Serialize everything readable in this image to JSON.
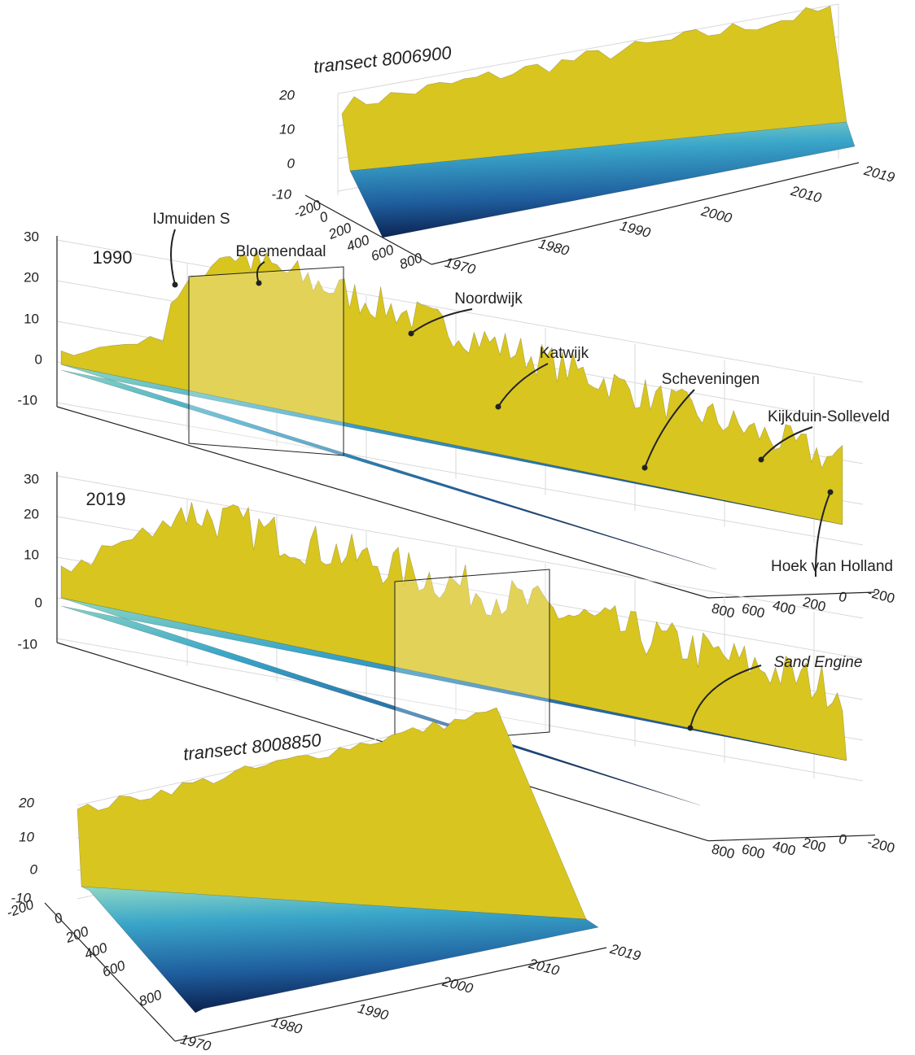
{
  "panels": [
    {
      "title": "transect 8006900",
      "z_ticks": [
        "20",
        "10",
        "0",
        "-10"
      ],
      "cross_shore_ticks": [
        "-200",
        "0",
        "200",
        "400",
        "600",
        "800"
      ],
      "time_ticks": [
        "1970",
        "1980",
        "1990",
        "2000",
        "2010",
        "2019"
      ]
    },
    {
      "label": "1990",
      "z_ticks": [
        "30",
        "20",
        "10",
        "0",
        "-10"
      ],
      "cross_shore_ticks": [
        "800",
        "600",
        "400",
        "200",
        "0",
        "-200"
      ],
      "annotations": [
        "IJmuiden S",
        "Bloemendaal",
        "Noordwijk",
        "Katwijk",
        "Scheveningen",
        "Kijkduin-Solleveld",
        "Hoek van Holland"
      ]
    },
    {
      "label": "2019",
      "z_ticks": [
        "30",
        "20",
        "10",
        "0",
        "-10"
      ],
      "cross_shore_ticks": [
        "800",
        "600",
        "400",
        "200",
        "0",
        "-200"
      ],
      "annotations": [
        "Sand Engine"
      ]
    },
    {
      "title": "transect 8008850",
      "z_ticks": [
        "20",
        "10",
        "0",
        "-10"
      ],
      "cross_shore_ticks": [
        "-200",
        "0",
        "200",
        "400",
        "600",
        "800"
      ],
      "time_ticks": [
        "1970",
        "1980",
        "1990",
        "2000",
        "2010",
        "2019"
      ]
    }
  ]
}
